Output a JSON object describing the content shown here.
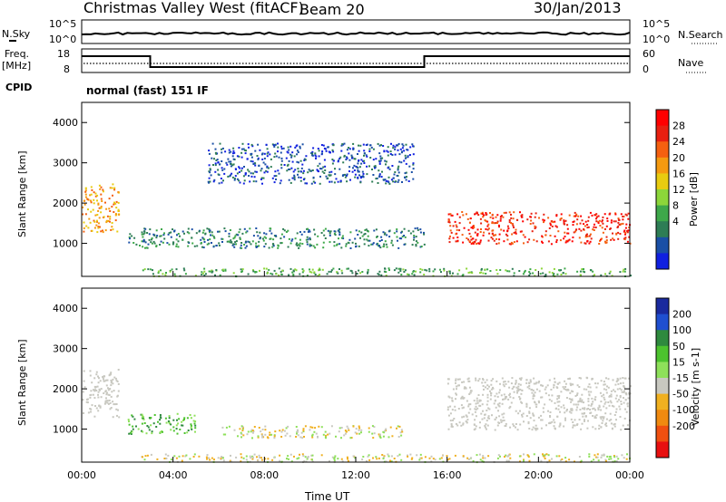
{
  "header": {
    "station": "Christmas Valley West (fitACF)",
    "beam": "Beam 20",
    "date": "30/Jan/2013",
    "cpid_label": "CPID",
    "cpid_value": "normal (fast) 151 IF"
  },
  "noise_panel": {
    "left_label": "N.Sky",
    "right_label": "N.Search",
    "left_ticks": [
      "10^5",
      "10^0"
    ],
    "right_ticks": [
      "10^5",
      "10^0"
    ]
  },
  "freq_panel": {
    "left_label_1": "Freq.",
    "left_label_2": "[MHz]",
    "right_label": "Nave",
    "left_ticks": [
      "18",
      "8"
    ],
    "right_ticks": [
      "60",
      "0"
    ]
  },
  "time_axis": {
    "label": "Time UT",
    "ticks": [
      "00:00",
      "04:00",
      "08:00",
      "12:00",
      "16:00",
      "20:00",
      "00:00"
    ]
  },
  "colors": {
    "power_bar": [
      "#1020e0",
      "#1a4fa6",
      "#2e7d55",
      "#3ea84a",
      "#8cd63a",
      "#e8cc10",
      "#f59a10",
      "#f56010",
      "#e82010",
      "#ff0000"
    ],
    "velocity_bar": [
      "#1a2a9e",
      "#1f4fd0",
      "#2e8a3e",
      "#4cc32e",
      "#8ee05a",
      "#c8c8c0",
      "#f0b020",
      "#f08a10",
      "#f05010",
      "#e81010"
    ],
    "scatter_grey": "#c8c8c0"
  },
  "chart_data": [
    {
      "type": "heatmap",
      "title": "Power",
      "ylabel": "Slant Range [km]",
      "xlabel": "",
      "x_range_hours": [
        0,
        24
      ],
      "ylim_km": [
        180,
        4500
      ],
      "yticks": [
        "1000",
        "2000",
        "3000",
        "4000"
      ],
      "colorbar": {
        "label": "Power [dB]",
        "range": [
          0,
          30
        ],
        "ticks": [
          "4",
          "8",
          "12",
          "16",
          "20",
          "24",
          "28"
        ]
      },
      "echo_regions": [
        {
          "region": "early dayside echoes",
          "t_start": 0.0,
          "t_end": 1.6,
          "range_km": [
            1300,
            2500
          ],
          "power_db": 20
        },
        {
          "region": "near-range band",
          "t_start": 2.0,
          "t_end": 15.0,
          "range_km": [
            900,
            1400
          ],
          "power_db": 6
        },
        {
          "region": "upper arc",
          "t_start": 5.5,
          "t_end": 14.5,
          "range_km": [
            2500,
            3500
          ],
          "power_db": 4
        },
        {
          "region": "post-16UT strong echoes",
          "t_start": 16.0,
          "t_end": 24.0,
          "range_km": [
            1000,
            1800
          ],
          "power_db": 26
        },
        {
          "region": "near ground band",
          "t_start": 2.5,
          "t_end": 24.0,
          "range_km": [
            200,
            400
          ],
          "power_db": 10
        }
      ]
    },
    {
      "type": "heatmap",
      "title": "Velocity",
      "ylabel": "Slant Range [km]",
      "xlabel": "Time UT",
      "x_range_hours": [
        0,
        24
      ],
      "ylim_km": [
        180,
        4500
      ],
      "yticks": [
        "1000",
        "2000",
        "3000",
        "4000"
      ],
      "colorbar": {
        "label": "Velocity [m s-1]",
        "range": [
          -250,
          250
        ],
        "ticks": [
          "200",
          "100",
          "50",
          "15",
          "-15",
          "-50",
          "-100",
          "-200"
        ]
      },
      "echo_regions": [
        {
          "region": "early ground scatter",
          "t_start": 0.0,
          "t_end": 1.6,
          "range_km": [
            1300,
            2500
          ],
          "velocity_ms": 0
        },
        {
          "region": "positive velocity patch",
          "t_start": 2.0,
          "t_end": 5.0,
          "range_km": [
            900,
            1400
          ],
          "velocity_ms": 50
        },
        {
          "region": "negative velocity patch",
          "t_start": 6.0,
          "t_end": 14.0,
          "range_km": [
            800,
            1100
          ],
          "velocity_ms": -50
        },
        {
          "region": "post-16UT ground scatter",
          "t_start": 16.0,
          "t_end": 24.0,
          "range_km": [
            1000,
            2300
          ],
          "velocity_ms": 0
        },
        {
          "region": "near range band",
          "t_start": 2.5,
          "t_end": 24.0,
          "range_km": [
            200,
            400
          ],
          "velocity_ms": -30
        }
      ]
    }
  ]
}
